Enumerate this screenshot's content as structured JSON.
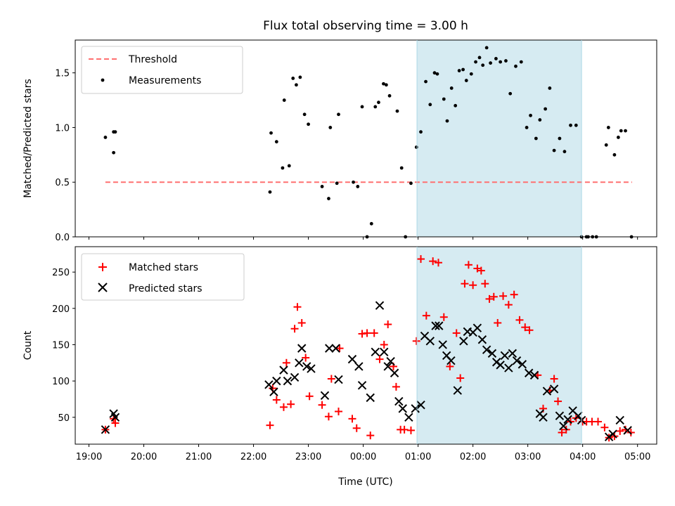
{
  "chart_data": {
    "type": "scatter",
    "title": "Flux total observing time = 3.00 h",
    "xlabel": "Time (UTC)",
    "x_tick_labels": [
      "19:00",
      "20:00",
      "21:00",
      "22:00",
      "23:00",
      "00:00",
      "01:00",
      "02:00",
      "03:00",
      "04:00",
      "05:00"
    ],
    "x_tick_values_hours": [
      19,
      20,
      21,
      22,
      23,
      24,
      25,
      26,
      27,
      28,
      29
    ],
    "xlim_hours": [
      18.75,
      29.35
    ],
    "highlight_span": {
      "start": "00:59",
      "end": "03:59",
      "start_hours": 24.98,
      "end_hours": 27.98,
      "color": "#add8e6"
    },
    "panels": [
      {
        "ylabel": "Matched/Predicted stars",
        "ylim": [
          0,
          1.8
        ],
        "yticks": [
          0.0,
          0.5,
          1.0,
          1.5
        ],
        "ytick_labels": [
          "0.0",
          "0.5",
          "1.0",
          "1.5"
        ],
        "legend_position": "upper-left",
        "threshold": {
          "name": "Threshold",
          "value": 0.5,
          "x_start_hours": 19.3,
          "x_end_hours": 28.9,
          "color": "#ff7070",
          "style": "dashed"
        },
        "series": [
          {
            "name": "Measurements",
            "marker": "dot",
            "color": "#000000",
            "x": [
              19.3,
              19.45,
              19.45,
              19.48,
              22.3,
              22.32,
              22.42,
              22.53,
              22.56,
              22.65,
              22.72,
              22.78,
              22.85,
              22.93,
              23.0,
              23.25,
              23.37,
              23.4,
              23.52,
              23.55,
              23.82,
              23.9,
              23.98,
              24.07,
              24.15,
              24.22,
              24.28,
              24.37,
              24.42,
              24.48,
              24.62,
              24.7,
              24.77,
              24.87,
              24.97,
              25.05,
              25.14,
              25.22,
              25.3,
              25.35,
              25.47,
              25.53,
              25.61,
              25.68,
              25.75,
              25.82,
              25.88,
              25.97,
              26.05,
              26.12,
              26.18,
              26.25,
              26.32,
              26.42,
              26.5,
              26.6,
              26.68,
              26.78,
              26.88,
              26.98,
              27.05,
              27.15,
              27.22,
              27.32,
              27.4,
              27.48,
              27.58,
              27.67,
              27.78,
              27.88,
              27.98,
              28.07,
              28.1,
              28.18,
              28.25,
              28.43,
              28.47,
              28.58,
              28.65,
              28.7,
              28.78,
              28.89
            ],
            "y": [
              0.91,
              0.77,
              0.96,
              0.96,
              0.41,
              0.95,
              0.87,
              0.63,
              1.25,
              0.65,
              1.45,
              1.39,
              1.46,
              1.12,
              1.03,
              0.46,
              0.35,
              1.0,
              0.49,
              1.12,
              0.5,
              0.46,
              1.19,
              0.0,
              0.12,
              1.19,
              1.23,
              1.4,
              1.39,
              1.29,
              1.15,
              0.63,
              0.0,
              0.49,
              0.82,
              0.96,
              1.42,
              1.21,
              1.5,
              1.49,
              1.26,
              1.06,
              1.36,
              1.2,
              1.52,
              1.53,
              1.43,
              1.49,
              1.6,
              1.64,
              1.57,
              1.73,
              1.59,
              1.63,
              1.6,
              1.61,
              1.31,
              1.56,
              1.6,
              1.0,
              1.11,
              0.9,
              1.07,
              1.17,
              1.36,
              0.79,
              0.9,
              0.78,
              1.02,
              1.02,
              0.0,
              0.0,
              0.0,
              0.0,
              0.0,
              0.84,
              1.0,
              0.75,
              0.91,
              0.97,
              0.97,
              0.0
            ]
          }
        ]
      },
      {
        "ylabel": "Count",
        "ylim": [
          13,
          285
        ],
        "yticks": [
          50,
          100,
          150,
          200,
          250
        ],
        "ytick_labels": [
          "50",
          "100",
          "150",
          "200",
          "250"
        ],
        "legend_position": "upper-left",
        "series": [
          {
            "name": "Matched stars",
            "marker": "plus",
            "color": "#ff0000",
            "x": [
              19.3,
              19.45,
              19.48,
              22.3,
              22.35,
              22.42,
              22.55,
              22.6,
              22.68,
              22.75,
              22.8,
              22.88,
              22.95,
              23.02,
              23.25,
              23.37,
              23.42,
              23.55,
              23.57,
              23.8,
              23.88,
              23.98,
              24.07,
              24.13,
              24.2,
              24.3,
              24.38,
              24.45,
              24.55,
              24.6,
              24.68,
              24.75,
              24.87,
              24.97,
              25.05,
              25.15,
              25.27,
              25.37,
              25.47,
              25.58,
              25.7,
              25.77,
              25.85,
              25.92,
              26.0,
              26.08,
              26.15,
              26.22,
              26.3,
              26.38,
              26.45,
              26.55,
              26.65,
              26.75,
              26.85,
              26.95,
              27.03,
              27.18,
              27.28,
              27.4,
              27.48,
              27.55,
              27.62,
              27.7,
              27.78,
              27.88,
              28.0,
              28.07,
              28.17,
              28.28,
              28.4,
              28.48,
              28.58,
              28.68,
              28.78,
              28.88
            ],
            "y": [
              33,
              48,
              42,
              39,
              90,
              74,
              64,
              125,
              68,
              172,
              202,
              180,
              132,
              79,
              67,
              51,
              103,
              58,
              145,
              48,
              35,
              165,
              166,
              25,
              166,
              130,
              150,
              178,
              120,
              92,
              33,
              33,
              32,
              155,
              268,
              190,
              265,
              263,
              188,
              120,
              166,
              104,
              234,
              260,
              232,
              255,
              252,
              234,
              213,
              216,
              180,
              217,
              205,
              219,
              184,
              174,
              170,
              108,
              62,
              87,
              103,
              72,
              29,
              33,
              44,
              49,
              44,
              44,
              44,
              44,
              36,
              22,
              24,
              31,
              33,
              29
            ]
          },
          {
            "name": "Predicted stars",
            "marker": "x",
            "color": "#000000",
            "x": [
              19.3,
              19.45,
              19.48,
              22.28,
              22.37,
              22.42,
              22.55,
              22.62,
              22.75,
              22.83,
              22.88,
              22.97,
              23.05,
              23.3,
              23.38,
              23.5,
              23.55,
              23.8,
              23.92,
              23.98,
              24.13,
              24.22,
              24.3,
              24.38,
              24.45,
              24.5,
              24.57,
              24.65,
              24.72,
              24.83,
              24.95,
              25.05,
              25.12,
              25.22,
              25.32,
              25.38,
              25.45,
              25.52,
              25.6,
              25.72,
              25.83,
              25.9,
              26.0,
              26.08,
              26.17,
              26.25,
              26.35,
              26.43,
              26.5,
              26.58,
              26.65,
              26.72,
              26.8,
              26.9,
              27.02,
              27.12,
              27.22,
              27.28,
              27.35,
              27.48,
              27.58,
              27.65,
              27.73,
              27.82,
              27.92,
              27.98,
              28.48,
              28.55,
              28.68,
              28.82
            ],
            "y": [
              33,
              55,
              50,
              95,
              85,
              100,
              115,
              100,
              105,
              125,
              145,
              120,
              117,
              80,
              145,
              145,
              102,
              130,
              120,
              94,
              77,
              140,
              204,
              140,
              120,
              127,
              111,
              72,
              62,
              50,
              62,
              67,
              162,
              155,
              176,
              176,
              150,
              135,
              128,
              87,
              155,
              168,
              167,
              173,
              157,
              143,
              138,
              126,
              122,
              135,
              118,
              138,
              128,
              123,
              111,
              108,
              55,
              50,
              86,
              89,
              52,
              38,
              47,
              59,
              52,
              46,
              23,
              27,
              46,
              32
            ]
          }
        ]
      }
    ]
  }
}
